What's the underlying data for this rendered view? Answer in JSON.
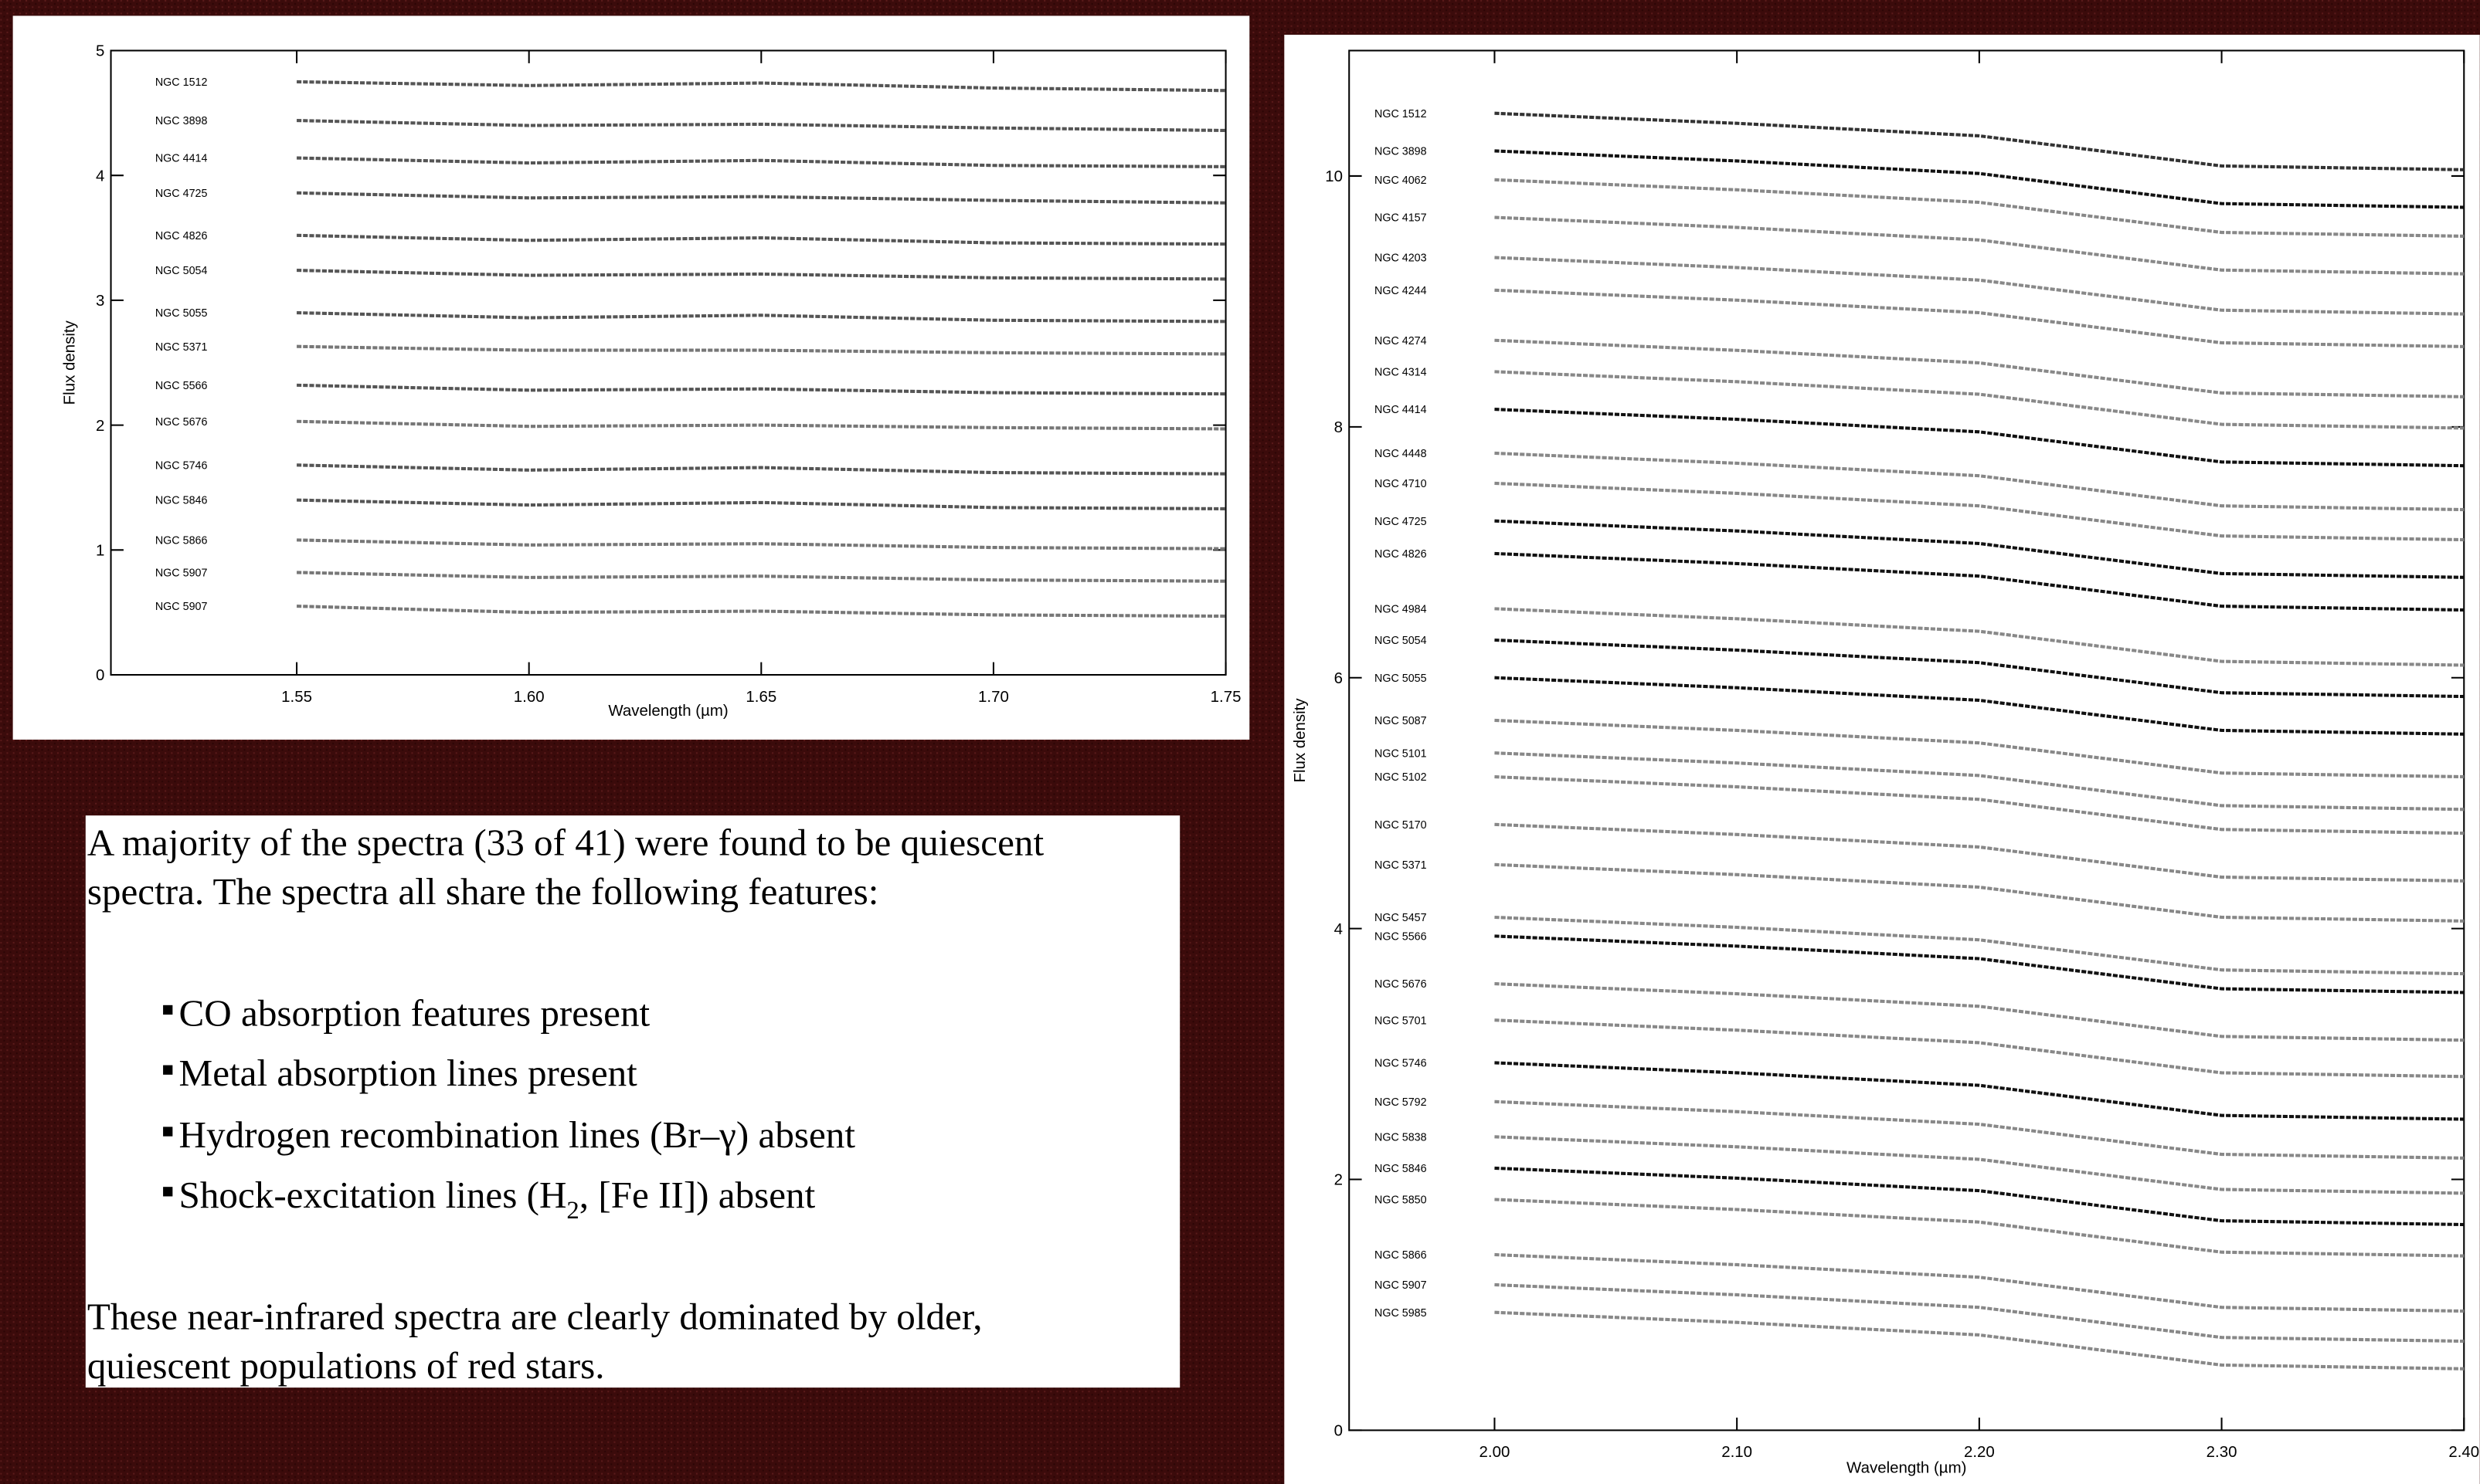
{
  "chart_data": [
    {
      "type": "line",
      "xlabel": "Wavelength (µm)",
      "ylabel": "Flux density",
      "xlim": [
        1.51,
        1.75
      ],
      "ylim": [
        0,
        5
      ],
      "xticks": [
        {
          "value": 1.55,
          "label": "1.55"
        },
        {
          "value": 1.6,
          "label": "1.60"
        },
        {
          "value": 1.65,
          "label": "1.65"
        },
        {
          "value": 1.7,
          "label": "1.70"
        },
        {
          "value": 1.75,
          "label": "1.75"
        }
      ],
      "yticks": [
        0,
        1,
        2,
        3,
        4,
        5
      ],
      "x": [
        1.55,
        1.6,
        1.65,
        1.7,
        1.75
      ],
      "series": [
        {
          "name": "NGC 1512",
          "color": "#555555",
          "values": [
            4.75,
            4.72,
            4.74,
            4.7,
            4.68
          ]
        },
        {
          "name": "NGC 3898",
          "color": "#555555",
          "values": [
            4.44,
            4.4,
            4.41,
            4.38,
            4.36
          ]
        },
        {
          "name": "NGC 4414",
          "color": "#555555",
          "values": [
            4.14,
            4.1,
            4.12,
            4.08,
            4.07
          ]
        },
        {
          "name": "NGC 4725",
          "color": "#555555",
          "values": [
            3.86,
            3.82,
            3.83,
            3.8,
            3.78
          ]
        },
        {
          "name": "NGC 4826",
          "color": "#555555",
          "values": [
            3.52,
            3.48,
            3.5,
            3.46,
            3.45
          ]
        },
        {
          "name": "NGC 5054",
          "color": "#555555",
          "values": [
            3.24,
            3.2,
            3.21,
            3.18,
            3.17
          ]
        },
        {
          "name": "NGC 5055",
          "color": "#555555",
          "values": [
            2.9,
            2.86,
            2.88,
            2.84,
            2.83
          ]
        },
        {
          "name": "NGC 5371",
          "color": "#777777",
          "values": [
            2.63,
            2.6,
            2.6,
            2.58,
            2.57
          ]
        },
        {
          "name": "NGC 5566",
          "color": "#555555",
          "values": [
            2.32,
            2.28,
            2.29,
            2.26,
            2.25
          ]
        },
        {
          "name": "NGC 5676",
          "color": "#777777",
          "values": [
            2.03,
            1.99,
            2.0,
            1.98,
            1.97
          ]
        },
        {
          "name": "NGC 5746",
          "color": "#555555",
          "values": [
            1.68,
            1.64,
            1.66,
            1.62,
            1.61
          ]
        },
        {
          "name": "NGC 5846",
          "color": "#555555",
          "values": [
            1.4,
            1.36,
            1.38,
            1.34,
            1.33
          ]
        },
        {
          "name": "NGC 5866",
          "color": "#777777",
          "values": [
            1.08,
            1.04,
            1.05,
            1.02,
            1.01
          ]
        },
        {
          "name": "NGC 5907",
          "color": "#777777",
          "values": [
            0.82,
            0.78,
            0.79,
            0.76,
            0.75
          ]
        },
        {
          "name": "NGC 5907",
          "color": "#777777",
          "values": [
            0.55,
            0.5,
            0.51,
            0.48,
            0.47
          ]
        }
      ]
    },
    {
      "type": "line",
      "xlabel": "Wavelength (µm)",
      "ylabel": "Flux density",
      "xlim": [
        1.94,
        2.4
      ],
      "ylim": [
        0,
        11
      ],
      "xticks": [
        {
          "value": 2.0,
          "label": "2.00"
        },
        {
          "value": 2.1,
          "label": "2.10"
        },
        {
          "value": 2.2,
          "label": "2.20"
        },
        {
          "value": 2.3,
          "label": "2.30"
        },
        {
          "value": 2.4,
          "label": "2.40"
        }
      ],
      "yticks": [
        0,
        2,
        4,
        6,
        8,
        10
      ],
      "x": [
        2.0,
        2.1,
        2.2,
        2.3,
        2.4
      ],
      "series": [
        {
          "name": "NGC 1512",
          "color": "#333333",
          "values": [
            10.5,
            10.42,
            10.32,
            10.08,
            10.05
          ]
        },
        {
          "name": "NGC 3898",
          "color": "#111111",
          "values": [
            10.2,
            10.12,
            10.02,
            9.78,
            9.75
          ]
        },
        {
          "name": "NGC 4062",
          "color": "#888888",
          "values": [
            9.97,
            9.89,
            9.79,
            9.55,
            9.52
          ]
        },
        {
          "name": "NGC 4157",
          "color": "#888888",
          "values": [
            9.67,
            9.59,
            9.49,
            9.25,
            9.22
          ]
        },
        {
          "name": "NGC 4203",
          "color": "#888888",
          "values": [
            9.35,
            9.27,
            9.17,
            8.93,
            8.9
          ]
        },
        {
          "name": "NGC 4244",
          "color": "#888888",
          "values": [
            9.09,
            9.01,
            8.91,
            8.67,
            8.64
          ]
        },
        {
          "name": "NGC 4274",
          "color": "#888888",
          "values": [
            8.69,
            8.61,
            8.51,
            8.27,
            8.24
          ]
        },
        {
          "name": "NGC 4314",
          "color": "#888888",
          "values": [
            8.44,
            8.36,
            8.26,
            8.02,
            7.99
          ]
        },
        {
          "name": "NGC 4414",
          "color": "#111111",
          "values": [
            8.14,
            8.06,
            7.96,
            7.72,
            7.69
          ]
        },
        {
          "name": "NGC 4448",
          "color": "#888888",
          "values": [
            7.79,
            7.71,
            7.61,
            7.37,
            7.34
          ]
        },
        {
          "name": "NGC 4710",
          "color": "#888888",
          "values": [
            7.55,
            7.47,
            7.37,
            7.13,
            7.1
          ]
        },
        {
          "name": "NGC 4725",
          "color": "#111111",
          "values": [
            7.25,
            7.17,
            7.07,
            6.83,
            6.8
          ]
        },
        {
          "name": "NGC 4826",
          "color": "#111111",
          "values": [
            6.99,
            6.91,
            6.81,
            6.57,
            6.54
          ]
        },
        {
          "name": "NGC 4984",
          "color": "#888888",
          "values": [
            6.55,
            6.47,
            6.37,
            6.13,
            6.1
          ]
        },
        {
          "name": "NGC 5054",
          "color": "#111111",
          "values": [
            6.3,
            6.22,
            6.12,
            5.88,
            5.85
          ]
        },
        {
          "name": "NGC 5055",
          "color": "#111111",
          "values": [
            6.0,
            5.92,
            5.82,
            5.58,
            5.55
          ]
        },
        {
          "name": "NGC 5087",
          "color": "#888888",
          "values": [
            5.66,
            5.58,
            5.48,
            5.24,
            5.21
          ]
        },
        {
          "name": "NGC 5101",
          "color": "#888888",
          "values": [
            5.4,
            5.32,
            5.22,
            4.98,
            4.95
          ]
        },
        {
          "name": "NGC 5102",
          "color": "#888888",
          "values": [
            5.21,
            5.13,
            5.03,
            4.79,
            4.76
          ]
        },
        {
          "name": "NGC 5170",
          "color": "#888888",
          "values": [
            4.83,
            4.75,
            4.65,
            4.41,
            4.38
          ]
        },
        {
          "name": "NGC 5371",
          "color": "#888888",
          "values": [
            4.51,
            4.43,
            4.33,
            4.09,
            4.06
          ]
        },
        {
          "name": "NGC 5457",
          "color": "#888888",
          "values": [
            4.09,
            4.01,
            3.91,
            3.67,
            3.64
          ]
        },
        {
          "name": "NGC 5566",
          "color": "#111111",
          "values": [
            3.94,
            3.86,
            3.76,
            3.52,
            3.49
          ]
        },
        {
          "name": "NGC 5676",
          "color": "#888888",
          "values": [
            3.56,
            3.48,
            3.38,
            3.14,
            3.11
          ]
        },
        {
          "name": "NGC 5701",
          "color": "#888888",
          "values": [
            3.27,
            3.19,
            3.09,
            2.85,
            2.82
          ]
        },
        {
          "name": "NGC 5746",
          "color": "#111111",
          "values": [
            2.93,
            2.85,
            2.75,
            2.51,
            2.48
          ]
        },
        {
          "name": "NGC 5792",
          "color": "#888888",
          "values": [
            2.62,
            2.54,
            2.44,
            2.2,
            2.17
          ]
        },
        {
          "name": "NGC 5838",
          "color": "#888888",
          "values": [
            2.34,
            2.26,
            2.16,
            1.92,
            1.89
          ]
        },
        {
          "name": "NGC 5846",
          "color": "#111111",
          "values": [
            2.09,
            2.01,
            1.91,
            1.67,
            1.64
          ]
        },
        {
          "name": "NGC 5850",
          "color": "#888888",
          "values": [
            1.84,
            1.76,
            1.66,
            1.42,
            1.39
          ]
        },
        {
          "name": "NGC 5866",
          "color": "#888888",
          "values": [
            1.4,
            1.32,
            1.22,
            0.98,
            0.95
          ]
        },
        {
          "name": "NGC 5907",
          "color": "#888888",
          "values": [
            1.16,
            1.08,
            0.98,
            0.74,
            0.71
          ]
        },
        {
          "name": "NGC 5985",
          "color": "#888888",
          "values": [
            0.94,
            0.86,
            0.76,
            0.52,
            0.49
          ]
        }
      ]
    }
  ],
  "text_box": {
    "intro": [
      "A majority of the spectra (33 of 41) were found to be quiescent",
      "spectra.  The spectra all share the following features:"
    ],
    "bullets": [
      "CO absorption features present",
      "Metal absorption lines present",
      "Hydrogen recombination lines (Br–γ) absent",
      [
        "Shock-excitation lines (H",
        "2",
        ", [Fe II]) absent"
      ]
    ],
    "closing": [
      "These near-infrared spectra are clearly dominated by older,",
      "quiescent populations of red stars."
    ]
  }
}
